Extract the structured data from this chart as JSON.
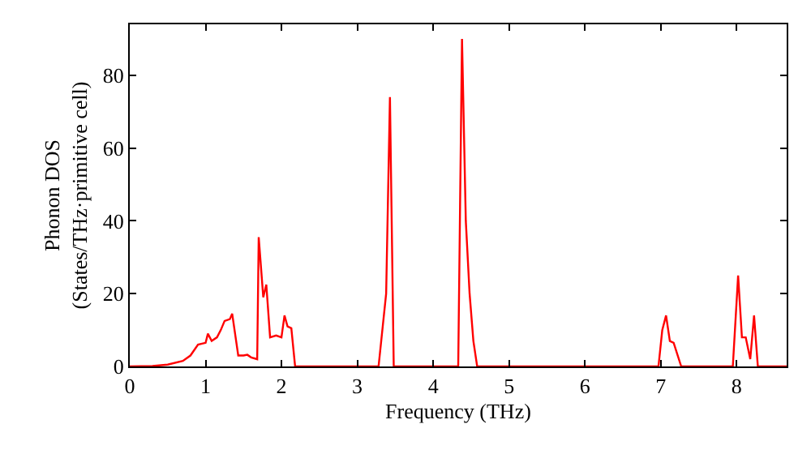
{
  "chart_data": {
    "type": "line",
    "xlabel": "Frequency (THz)",
    "ylabel": "Phonon DOS\n(States/THz·primitive cell)",
    "x": [
      0,
      0.3,
      0.5,
      0.7,
      0.8,
      0.9,
      1.0,
      1.03,
      1.08,
      1.15,
      1.2,
      1.25,
      1.32,
      1.35,
      1.43,
      1.5,
      1.55,
      1.6,
      1.68,
      1.7,
      1.76,
      1.8,
      1.85,
      1.93,
      2.0,
      2.04,
      2.08,
      2.13,
      2.18,
      3.28,
      3.38,
      3.43,
      3.48,
      4.33,
      4.38,
      4.43,
      4.48,
      4.53,
      4.58,
      6.97,
      7.02,
      7.07,
      7.12,
      7.17,
      7.27,
      7.95,
      8.02,
      8.07,
      8.12,
      8.18,
      8.23,
      8.28,
      8.66
    ],
    "series": [
      {
        "color": "#ff0000",
        "values": [
          0,
          0.1,
          0.5,
          1.5,
          3,
          6,
          6.5,
          9,
          7,
          8,
          10,
          12.5,
          13,
          14.5,
          3,
          3,
          3.2,
          2.5,
          2,
          35.5,
          19,
          22.5,
          8,
          8.5,
          8,
          14,
          11,
          10.5,
          0,
          0,
          20,
          74,
          0,
          0,
          90,
          40,
          20,
          7,
          0,
          0,
          10,
          14,
          7,
          6.5,
          0,
          0,
          25,
          8,
          8,
          2,
          14,
          0,
          0
        ]
      }
    ],
    "xlim": [
      0,
      8.66
    ],
    "ylim": [
      0,
      94
    ],
    "xticks": [
      0,
      1,
      2,
      3,
      4,
      5,
      6,
      7,
      8
    ],
    "yticks": [
      0,
      20,
      40,
      60,
      80
    ],
    "marker": "none",
    "line_style": "solid"
  }
}
